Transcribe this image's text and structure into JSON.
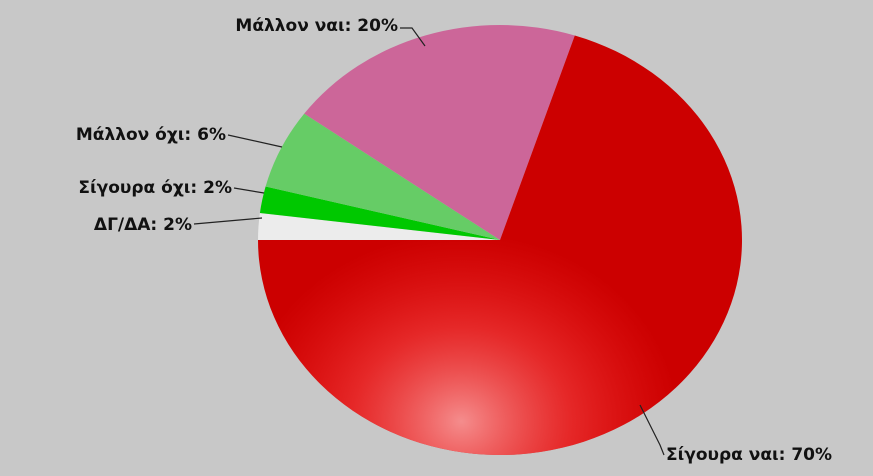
{
  "chart_data": {
    "type": "pie",
    "values": [
      2,
      2,
      6,
      20,
      70
    ],
    "value_labels": [
      "ΔΓ/ΔΑ: 2%",
      "Σίγουρα όχι: 2%",
      "Μάλλον όχι: 6%",
      "Μάλλον ναι: 20%",
      "Σίγουρα ναι: 70%"
    ],
    "colors": [
      "#ececec",
      "#00c800",
      "#66cc66",
      "#cc6699",
      "#cc0000"
    ]
  }
}
